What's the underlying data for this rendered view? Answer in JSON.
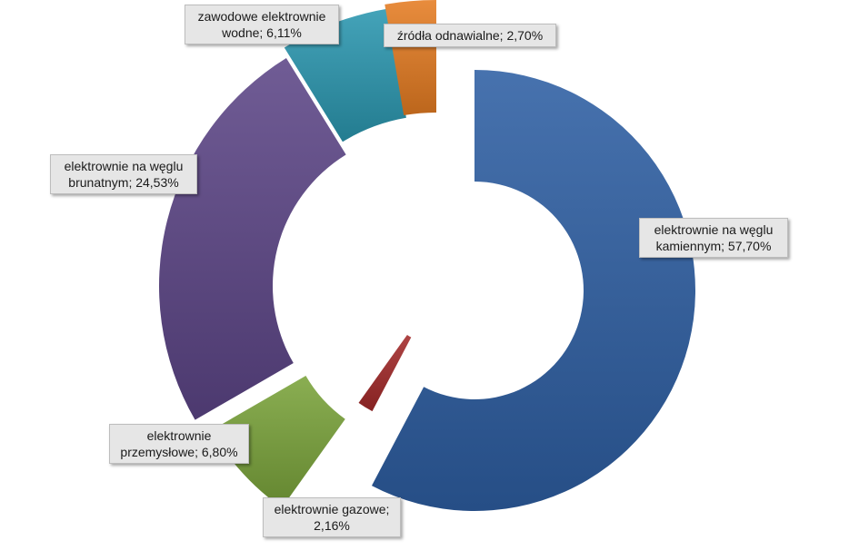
{
  "chart_data": {
    "type": "pie",
    "variant": "exploded-doughnut",
    "title": "",
    "start_angle_deg": 0,
    "direction": "clockwise",
    "slices": [
      {
        "name": "elektrownie na węglu kamiennym",
        "value": 57.7,
        "value_label": "57,70%",
        "label_lines": [
          "elektrownie na węglu",
          "kamiennym; 57,70%"
        ],
        "color": "#2e5fa3"
      },
      {
        "name": "elektrownie gazowe",
        "value": 2.16,
        "value_label": "2,16%",
        "label_lines": [
          "elektrownie gazowe;",
          "2,16%"
        ],
        "color": "#a32a2a"
      },
      {
        "name": "elektrownie przemysłowe",
        "value": 6.8,
        "value_label": "6,80%",
        "label_lines": [
          "elektrownie",
          "przemysłowe; 6,80%"
        ],
        "color": "#7aa33a"
      },
      {
        "name": "elektrownie na węglu brunatnym",
        "value": 24.53,
        "value_label": "24,53%",
        "label_lines": [
          "elektrownie na węglu",
          "brunatnym; 24,53%"
        ],
        "color": "#5d4687"
      },
      {
        "name": "zawodowe elektrownie wodne",
        "value": 6.11,
        "value_label": "6,11%",
        "label_lines": [
          "zawodowe elektrownie",
          "wodne; 6,11%"
        ],
        "color": "#2b97b0"
      },
      {
        "name": "źródła odnawialne",
        "value": 2.7,
        "value_label": "2,70%",
        "label_lines": [
          "źródła odnawialne; 2,70%"
        ],
        "color": "#e57c22"
      }
    ],
    "legend": "none",
    "data_labels": "boxed"
  }
}
